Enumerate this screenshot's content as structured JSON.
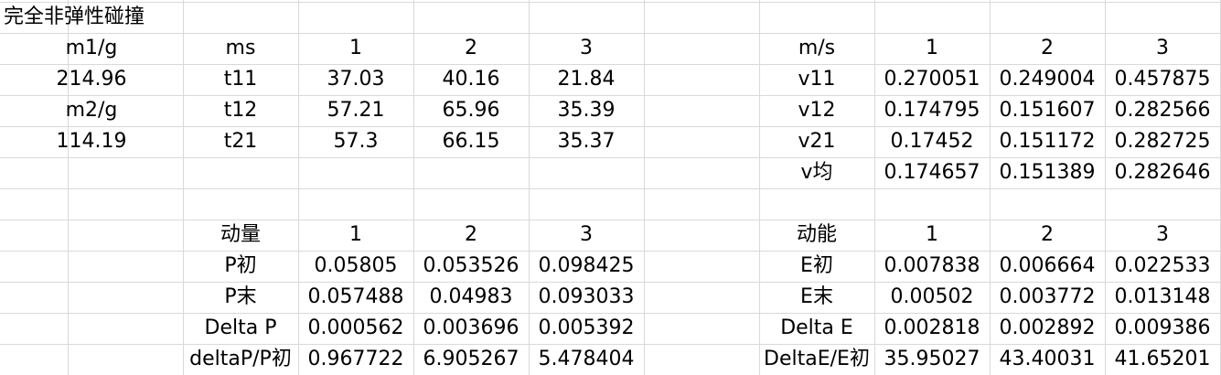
{
  "sheet": {
    "title": "完全非弹性碰撞",
    "rows": [
      [
        "",
        "",
        "",
        "",
        "",
        "",
        "",
        "",
        "",
        "",
        ""
      ],
      [
        "m1/g",
        "ms",
        "1",
        "2",
        "3",
        "",
        "m/s",
        "1",
        "2",
        "3"
      ],
      [
        "214.96",
        "t11",
        "37.03",
        "40.16",
        "21.84",
        "",
        "v11",
        "0.270051",
        "0.249004",
        "0.457875"
      ],
      [
        "m2/g",
        "t12",
        "57.21",
        "65.96",
        "35.39",
        "",
        "v12",
        "0.174795",
        "0.151607",
        "0.282566"
      ],
      [
        "114.19",
        "t21",
        "57.3",
        "66.15",
        "35.37",
        "",
        "v21",
        "0.17452",
        "0.151172",
        "0.282725"
      ],
      [
        "",
        "",
        "",
        "",
        "",
        "",
        "v均",
        "0.174657",
        "0.151389",
        "0.282646"
      ],
      [
        "",
        "",
        "",
        "",
        "",
        "",
        "",
        "",
        "",
        ""
      ],
      [
        "",
        "动量",
        "1",
        "2",
        "3",
        "",
        "动能",
        "1",
        "2",
        "3"
      ],
      [
        "",
        "P初",
        "0.05805",
        "0.053526",
        "0.098425",
        "",
        "E初",
        "0.007838",
        "0.006664",
        "0.022533"
      ],
      [
        "",
        "P末",
        "0.057488",
        "0.04983",
        "0.093033",
        "",
        "E末",
        "0.00502",
        "0.003772",
        "0.013148"
      ],
      [
        "",
        "Delta P",
        "0.000562",
        "0.003696",
        "0.005392",
        "",
        "Delta E",
        "0.002818",
        "0.002892",
        "0.009386"
      ],
      [
        "",
        "deltaP/P初",
        "0.967722",
        "6.905267",
        "5.478404",
        "",
        "DeltaE/E初",
        "35.95027",
        "43.40031",
        "41.65201"
      ]
    ]
  }
}
